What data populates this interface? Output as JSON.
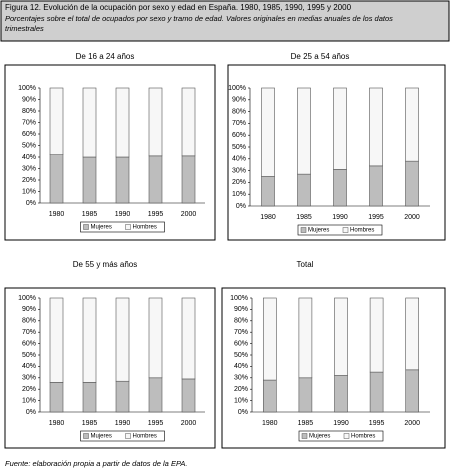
{
  "header": {
    "title": "Figura 12. Evolución de la ocupación por sexo y edad en España. 1980, 1985, 1990, 1995 y 2000",
    "subtitle_lines": [
      "Porcentajes sobre el total de ocupados por sexo y tramo de edad. Valores originales en medias anuales de los datos",
      "trimestrales"
    ]
  },
  "footer": "Fuente: elaboración propia a partir de datos de la EPA.",
  "chart_data": [
    {
      "type": "bar",
      "stacked": true,
      "title": "De 16 a 24 años",
      "categories": [
        "1980",
        "1985",
        "1990",
        "1995",
        "2000"
      ],
      "series": [
        {
          "name": "Mujeres",
          "color": "#bdbdbd",
          "values": [
            42,
            40,
            40,
            41,
            41
          ]
        },
        {
          "name": "Hombres",
          "color": "#f7f7f7",
          "values": [
            58,
            60,
            60,
            59,
            59
          ]
        }
      ],
      "ylim": [
        0,
        100
      ],
      "yticks": [
        {
          "value": 0,
          "label": "0%"
        },
        {
          "value": 10,
          "label": "10%"
        },
        {
          "value": 20,
          "label": "20%"
        },
        {
          "value": 30,
          "label": "30%"
        },
        {
          "value": 40,
          "label": "40%"
        },
        {
          "value": 50,
          "label": "50%"
        },
        {
          "value": 60,
          "label": "60%"
        },
        {
          "value": 70,
          "label": "70%"
        },
        {
          "value": 80,
          "label": "80%"
        },
        {
          "value": 90,
          "label": "90%"
        },
        {
          "value": 100,
          "label": "100%"
        }
      ]
    },
    {
      "type": "bar",
      "stacked": true,
      "title": "De 25 a 54 años",
      "categories": [
        "1980",
        "1985",
        "1990",
        "1995",
        "2000"
      ],
      "series": [
        {
          "name": "Mujeres",
          "color": "#bdbdbd",
          "values": [
            25,
            27,
            31,
            34,
            38
          ]
        },
        {
          "name": "Hombres",
          "color": "#f7f7f7",
          "values": [
            75,
            73,
            69,
            66,
            62
          ]
        }
      ],
      "ylim": [
        0,
        100
      ],
      "yticks": [
        {
          "value": 0,
          "label": "0%"
        },
        {
          "value": 10,
          "label": "10%"
        },
        {
          "value": 20,
          "label": "20%"
        },
        {
          "value": 30,
          "label": "30%"
        },
        {
          "value": 40,
          "label": "40%"
        },
        {
          "value": 50,
          "label": "50%"
        },
        {
          "value": 60,
          "label": "60%"
        },
        {
          "value": 70,
          "label": "70%"
        },
        {
          "value": 80,
          "label": "80%"
        },
        {
          "value": 90,
          "label": "90%"
        },
        {
          "value": 100,
          "label": "100%"
        }
      ]
    },
    {
      "type": "bar",
      "stacked": true,
      "title": "De 55 y más años",
      "categories": [
        "1980",
        "1985",
        "1990",
        "1995",
        "2000"
      ],
      "series": [
        {
          "name": "Mujeres",
          "color": "#bdbdbd",
          "values": [
            26,
            26,
            27,
            30,
            29
          ]
        },
        {
          "name": "Hombres",
          "color": "#f7f7f7",
          "values": [
            74,
            74,
            73,
            70,
            71
          ]
        }
      ],
      "ylim": [
        0,
        100
      ],
      "yticks": [
        {
          "value": 0,
          "label": "0%"
        },
        {
          "value": 10,
          "label": "10%"
        },
        {
          "value": 20,
          "label": "20%"
        },
        {
          "value": 30,
          "label": "30%"
        },
        {
          "value": 40,
          "label": "40%"
        },
        {
          "value": 50,
          "label": "50%"
        },
        {
          "value": 60,
          "label": "60%"
        },
        {
          "value": 70,
          "label": "70%"
        },
        {
          "value": 80,
          "label": "80%"
        },
        {
          "value": 90,
          "label": "90%"
        },
        {
          "value": 100,
          "label": "100%"
        }
      ]
    },
    {
      "type": "bar",
      "stacked": true,
      "title": "Total",
      "categories": [
        "1980",
        "1985",
        "1990",
        "1995",
        "2000"
      ],
      "series": [
        {
          "name": "Mujeres",
          "color": "#bdbdbd",
          "values": [
            28,
            30,
            32,
            35,
            37
          ]
        },
        {
          "name": "Hombres",
          "color": "#f7f7f7",
          "values": [
            72,
            70,
            68,
            65,
            63
          ]
        }
      ],
      "ylim": [
        0,
        100
      ],
      "yticks": [
        {
          "value": 0,
          "label": "0%"
        },
        {
          "value": 10,
          "label": "10%"
        },
        {
          "value": 20,
          "label": "20%"
        },
        {
          "value": 30,
          "label": "30%"
        },
        {
          "value": 40,
          "label": "40%"
        },
        {
          "value": 50,
          "label": "50%"
        },
        {
          "value": 60,
          "label": "60%"
        },
        {
          "value": 70,
          "label": "70%"
        },
        {
          "value": 80,
          "label": "80%"
        },
        {
          "value": 90,
          "label": "90%"
        },
        {
          "value": 100,
          "label": "100%"
        }
      ]
    }
  ]
}
